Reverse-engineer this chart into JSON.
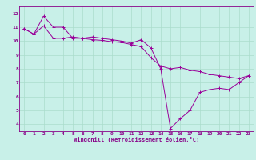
{
  "xlabel": "Windchill (Refroidissement éolien,°C)",
  "background_color": "#c8f0e8",
  "line_color": "#990099",
  "xlim": [
    -0.5,
    23.5
  ],
  "ylim": [
    3.5,
    12.5
  ],
  "xticks": [
    0,
    1,
    2,
    3,
    4,
    5,
    6,
    7,
    8,
    9,
    10,
    11,
    12,
    13,
    14,
    15,
    16,
    17,
    18,
    19,
    20,
    21,
    22,
    23
  ],
  "yticks": [
    4,
    5,
    6,
    7,
    8,
    9,
    10,
    11,
    12
  ],
  "series1": [
    [
      0,
      10.9
    ],
    [
      1,
      10.5
    ],
    [
      2,
      11.8
    ],
    [
      3,
      11.0
    ],
    [
      4,
      11.0
    ],
    [
      5,
      10.2
    ],
    [
      6,
      10.2
    ],
    [
      7,
      10.3
    ],
    [
      8,
      10.2
    ],
    [
      9,
      10.1
    ],
    [
      10,
      10.0
    ],
    [
      11,
      9.85
    ],
    [
      12,
      10.1
    ],
    [
      13,
      9.5
    ],
    [
      14,
      8.0
    ],
    [
      15,
      3.7
    ],
    [
      16,
      4.4
    ],
    [
      17,
      5.0
    ],
    [
      18,
      6.3
    ],
    [
      19,
      6.5
    ],
    [
      20,
      6.6
    ],
    [
      21,
      6.5
    ],
    [
      22,
      7.0
    ],
    [
      23,
      7.5
    ]
  ],
  "series2": [
    [
      0,
      10.9
    ],
    [
      1,
      10.5
    ],
    [
      2,
      11.1
    ],
    [
      3,
      10.2
    ],
    [
      4,
      10.2
    ],
    [
      5,
      10.3
    ],
    [
      6,
      10.2
    ],
    [
      7,
      10.1
    ],
    [
      8,
      10.05
    ],
    [
      9,
      9.95
    ],
    [
      10,
      9.9
    ],
    [
      11,
      9.75
    ],
    [
      12,
      9.6
    ],
    [
      13,
      8.8
    ],
    [
      14,
      8.2
    ],
    [
      15,
      8.0
    ],
    [
      16,
      8.1
    ],
    [
      17,
      7.9
    ],
    [
      18,
      7.8
    ],
    [
      19,
      7.6
    ],
    [
      20,
      7.5
    ],
    [
      21,
      7.4
    ],
    [
      22,
      7.3
    ],
    [
      23,
      7.5
    ]
  ],
  "grid_color": "#aaddcc",
  "tick_color": "#880088",
  "label_color": "#880088",
  "tick_fontsize": 4.5,
  "xlabel_fontsize": 5.0
}
